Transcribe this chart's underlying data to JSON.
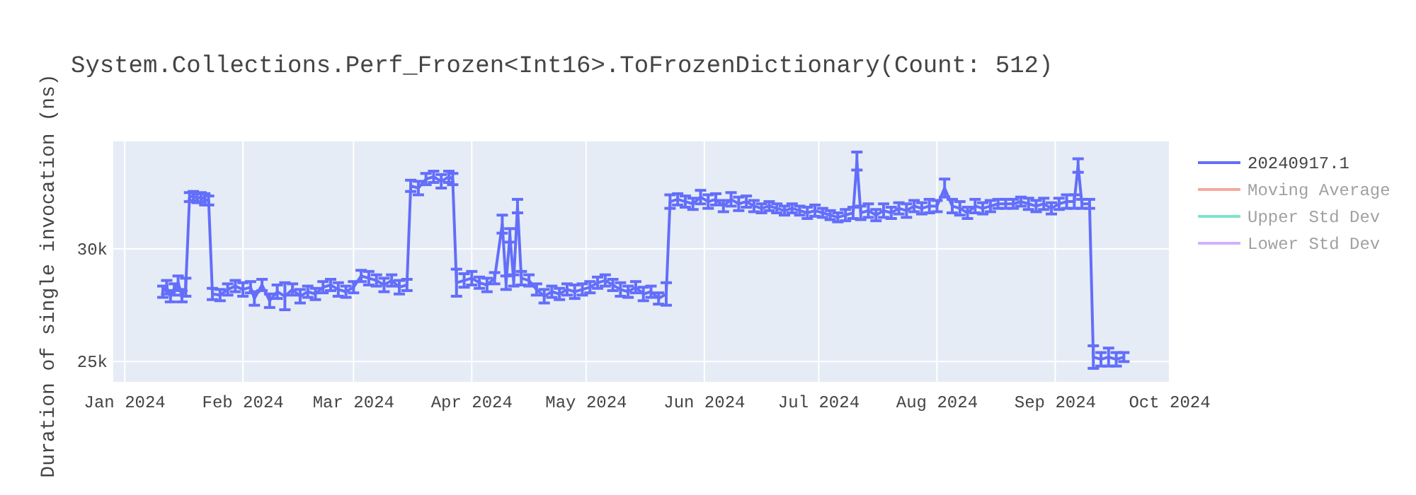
{
  "chart_data": {
    "type": "line",
    "title": "System.Collections.Perf_Frozen<Int16>.ToFrozenDictionary(Count: 512)",
    "ylabel": "Duration of single invocation (ns)",
    "xlim": [
      "2023-12-29",
      "2024-10-01"
    ],
    "xticks": [
      {
        "value": "2024-01-01",
        "label": "Jan 2024"
      },
      {
        "value": "2024-02-01",
        "label": "Feb 2024"
      },
      {
        "value": "2024-03-01",
        "label": "Mar 2024"
      },
      {
        "value": "2024-04-01",
        "label": "Apr 2024"
      },
      {
        "value": "2024-05-01",
        "label": "May 2024"
      },
      {
        "value": "2024-06-01",
        "label": "Jun 2024"
      },
      {
        "value": "2024-07-01",
        "label": "Jul 2024"
      },
      {
        "value": "2024-08-01",
        "label": "Aug 2024"
      },
      {
        "value": "2024-09-01",
        "label": "Sep 2024"
      },
      {
        "value": "2024-10-01",
        "label": "Oct 2024"
      }
    ],
    "ylim": [
      24100,
      34770
    ],
    "yticks": [
      {
        "value": 25000,
        "label": "25k"
      },
      {
        "value": 30000,
        "label": "30k"
      }
    ],
    "grid": true,
    "legend": "top right",
    "marker": "none",
    "series": [
      {
        "name": "20240917.1",
        "color": "#636efa",
        "x": [
          "2024-01-11",
          "2024-01-12",
          "2024-01-13",
          "2024-01-14",
          "2024-01-15",
          "2024-01-16",
          "2024-01-17",
          "2024-01-18",
          "2024-01-19",
          "2024-01-20",
          "2024-01-21",
          "2024-01-22",
          "2024-01-23",
          "2024-01-24",
          "2024-01-26",
          "2024-01-28",
          "2024-01-30",
          "2024-02-01",
          "2024-02-03",
          "2024-02-04",
          "2024-02-06",
          "2024-02-08",
          "2024-02-10",
          "2024-02-12",
          "2024-02-14",
          "2024-02-16",
          "2024-02-18",
          "2024-02-20",
          "2024-02-22",
          "2024-02-24",
          "2024-02-26",
          "2024-02-28",
          "2024-03-01",
          "2024-03-03",
          "2024-03-05",
          "2024-03-07",
          "2024-03-09",
          "2024-03-11",
          "2024-03-13",
          "2024-03-15",
          "2024-03-16",
          "2024-03-18",
          "2024-03-20",
          "2024-03-22",
          "2024-03-24",
          "2024-03-26",
          "2024-03-27",
          "2024-03-28",
          "2024-03-30",
          "2024-04-01",
          "2024-04-03",
          "2024-04-05",
          "2024-04-07",
          "2024-04-09",
          "2024-04-10",
          "2024-04-11",
          "2024-04-12",
          "2024-04-13",
          "2024-04-14",
          "2024-04-16",
          "2024-04-18",
          "2024-04-20",
          "2024-04-22",
          "2024-04-24",
          "2024-04-26",
          "2024-04-28",
          "2024-04-30",
          "2024-05-02",
          "2024-05-04",
          "2024-05-06",
          "2024-05-08",
          "2024-05-10",
          "2024-05-12",
          "2024-05-14",
          "2024-05-16",
          "2024-05-18",
          "2024-05-20",
          "2024-05-22",
          "2024-05-23",
          "2024-05-25",
          "2024-05-27",
          "2024-05-29",
          "2024-05-31",
          "2024-06-02",
          "2024-06-04",
          "2024-06-06",
          "2024-06-08",
          "2024-06-10",
          "2024-06-12",
          "2024-06-14",
          "2024-06-16",
          "2024-06-18",
          "2024-06-20",
          "2024-06-22",
          "2024-06-24",
          "2024-06-26",
          "2024-06-28",
          "2024-06-30",
          "2024-07-02",
          "2024-07-04",
          "2024-07-06",
          "2024-07-08",
          "2024-07-10",
          "2024-07-11",
          "2024-07-12",
          "2024-07-14",
          "2024-07-16",
          "2024-07-18",
          "2024-07-20",
          "2024-07-22",
          "2024-07-24",
          "2024-07-26",
          "2024-07-28",
          "2024-07-30",
          "2024-08-01",
          "2024-08-03",
          "2024-08-05",
          "2024-08-07",
          "2024-08-09",
          "2024-08-11",
          "2024-08-13",
          "2024-08-15",
          "2024-08-17",
          "2024-08-19",
          "2024-08-21",
          "2024-08-23",
          "2024-08-25",
          "2024-08-27",
          "2024-08-29",
          "2024-08-31",
          "2024-09-02",
          "2024-09-04",
          "2024-09-06",
          "2024-09-07",
          "2024-09-08",
          "2024-09-10",
          "2024-09-11",
          "2024-09-13",
          "2024-09-15",
          "2024-09-17",
          "2024-09-19"
        ],
        "values": [
          28100,
          28300,
          27900,
          28200,
          28500,
          27900,
          28300,
          32300,
          32350,
          32250,
          32300,
          32200,
          32150,
          28000,
          27950,
          28200,
          28350,
          28200,
          28300,
          27800,
          28400,
          27700,
          28100,
          27900,
          28200,
          27900,
          28100,
          28000,
          28300,
          28400,
          28200,
          28100,
          28300,
          28800,
          28700,
          28600,
          28400,
          28600,
          28300,
          28400,
          32800,
          32700,
          33100,
          33200,
          33000,
          33200,
          33100,
          28500,
          28600,
          28700,
          28500,
          28400,
          28700,
          31100,
          28500,
          30600,
          28600,
          31900,
          28700,
          28600,
          28200,
          27900,
          28100,
          28000,
          28200,
          28100,
          28200,
          28300,
          28500,
          28600,
          28400,
          28200,
          28100,
          28300,
          28000,
          28100,
          27800,
          28000,
          32100,
          32200,
          32100,
          32000,
          32300,
          32100,
          32200,
          31900,
          32200,
          32000,
          32100,
          31900,
          31800,
          31900,
          31800,
          31700,
          31800,
          31700,
          31600,
          31700,
          31600,
          31500,
          31400,
          31500,
          31600,
          33900,
          31600,
          31700,
          31500,
          31700,
          31600,
          31800,
          31700,
          31900,
          31800,
          31900,
          31900,
          32700,
          31900,
          31800,
          31600,
          31900,
          31800,
          31900,
          32000,
          32000,
          32000,
          32100,
          32000,
          31900,
          32000,
          31800,
          32000,
          32100,
          32100,
          33700,
          32000,
          32000,
          25200,
          25100,
          25200,
          25100,
          25200
        ],
        "errors": [
          250,
          300,
          250,
          250,
          300,
          250,
          400,
          200,
          200,
          200,
          200,
          250,
          200,
          250,
          250,
          250,
          250,
          300,
          250,
          300,
          250,
          300,
          300,
          600,
          250,
          300,
          250,
          250,
          250,
          250,
          300,
          250,
          250,
          250,
          300,
          250,
          300,
          250,
          300,
          250,
          250,
          300,
          250,
          250,
          300,
          250,
          250,
          600,
          300,
          300,
          250,
          300,
          250,
          400,
          300,
          300,
          250,
          300,
          300,
          250,
          250,
          300,
          250,
          250,
          250,
          300,
          250,
          250,
          250,
          250,
          250,
          300,
          250,
          250,
          300,
          250,
          250,
          500,
          300,
          250,
          250,
          250,
          300,
          300,
          250,
          250,
          300,
          300,
          250,
          250,
          200,
          200,
          200,
          200,
          200,
          200,
          250,
          250,
          200,
          200,
          200,
          250,
          250,
          400,
          300,
          300,
          250,
          300,
          250,
          250,
          300,
          250,
          250,
          300,
          250,
          400,
          300,
          300,
          250,
          300,
          250,
          250,
          200,
          200,
          200,
          200,
          250,
          250,
          250,
          250,
          250,
          300,
          300,
          300,
          200,
          200,
          500,
          300,
          400,
          300,
          200
        ]
      },
      {
        "name": "Moving Average",
        "color": "#ef553b"
      },
      {
        "name": "Upper Std Dev",
        "color": "#00cc96"
      },
      {
        "name": "Lower Std Dev",
        "color": "#ab63fa"
      }
    ]
  }
}
